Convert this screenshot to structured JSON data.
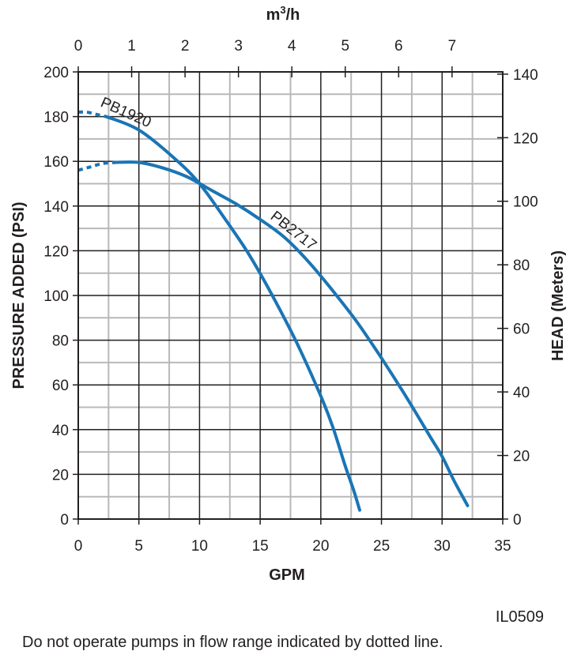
{
  "chart_data": {
    "type": "line",
    "x_axis": {
      "title": "GPM",
      "range": [
        0,
        35
      ],
      "ticks": [
        0,
        5,
        10,
        15,
        20,
        25,
        30,
        35
      ]
    },
    "y_axis": {
      "title": "PRESSURE ADDED (PSI)",
      "range": [
        0,
        200
      ],
      "ticks": [
        0,
        20,
        40,
        60,
        80,
        100,
        120,
        140,
        160,
        180,
        200
      ]
    },
    "top_axis": {
      "title_base": "m",
      "title_sup": "3",
      "title_tail": "/h",
      "ticks": [
        0,
        1,
        2,
        3,
        4,
        5,
        6,
        7
      ],
      "gpm_per_unit": 4.4029
    },
    "right_axis": {
      "title": "HEAD (Meters)",
      "ticks": [
        0,
        20,
        40,
        60,
        80,
        100,
        120,
        140
      ],
      "psi_per_unit": 1.4214
    },
    "grid": true,
    "series": [
      {
        "name": "PB1920",
        "color": "#1a75b5",
        "dotted": [
          [
            0,
            182
          ],
          [
            0.7,
            182
          ],
          [
            1.5,
            181
          ],
          [
            2.3,
            180
          ]
        ],
        "solid": [
          [
            2.3,
            180
          ],
          [
            5,
            174
          ],
          [
            8,
            161
          ],
          [
            10,
            150
          ],
          [
            12,
            135
          ],
          [
            14,
            119
          ],
          [
            16,
            100
          ],
          [
            18,
            79
          ],
          [
            20,
            55
          ],
          [
            21,
            41
          ],
          [
            22,
            24
          ],
          [
            22.7,
            13
          ],
          [
            23.2,
            4
          ]
        ]
      },
      {
        "name": "PB2717",
        "color": "#1a75b5",
        "dotted": [
          [
            0,
            156
          ],
          [
            1,
            157.5
          ],
          [
            2,
            159
          ],
          [
            3,
            159.5
          ]
        ],
        "solid": [
          [
            3,
            159.5
          ],
          [
            5,
            159.5
          ],
          [
            7,
            157
          ],
          [
            9,
            153
          ],
          [
            11,
            147
          ],
          [
            13,
            141
          ],
          [
            15,
            134
          ],
          [
            17,
            126
          ],
          [
            19,
            115
          ],
          [
            21,
            102
          ],
          [
            23,
            88
          ],
          [
            25,
            72
          ],
          [
            27,
            55
          ],
          [
            29,
            37
          ],
          [
            30,
            28
          ],
          [
            31,
            17
          ],
          [
            32.1,
            6
          ]
        ]
      }
    ]
  },
  "figure_code": "IL0509",
  "footnote": "Do not operate pumps in flow range indicated by dotted line."
}
